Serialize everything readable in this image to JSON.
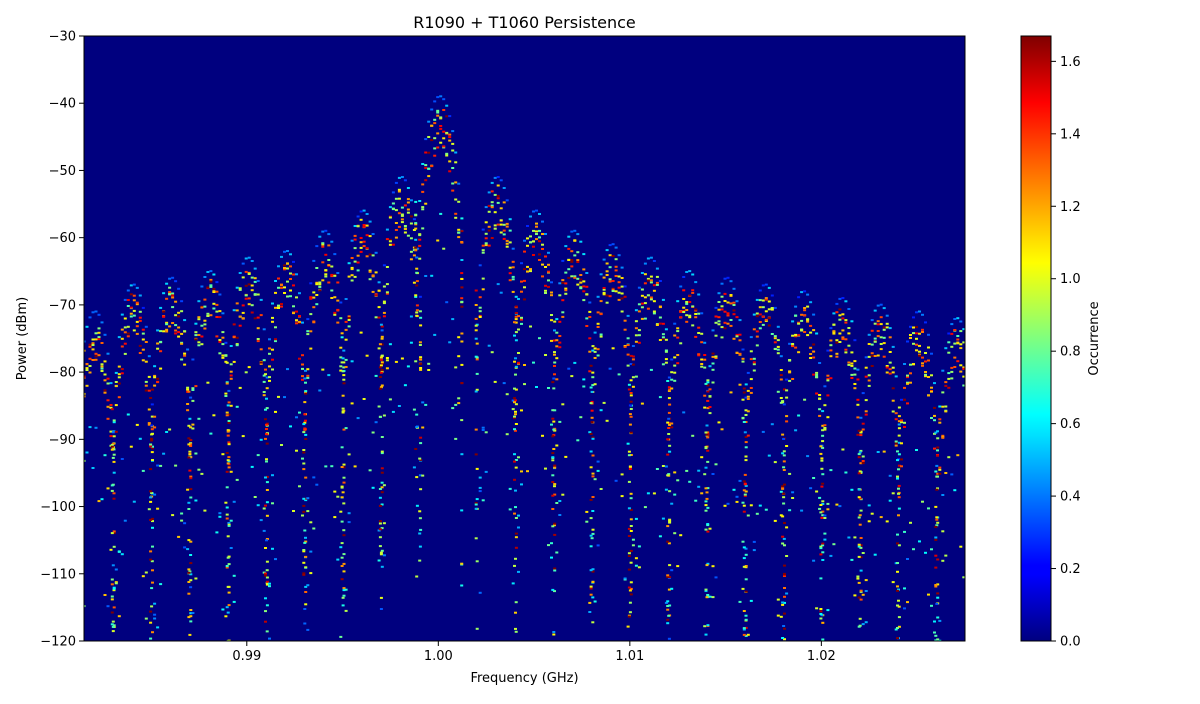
{
  "chart_data": {
    "type": "heatmap",
    "title": "R1090 + T1060 Persistence",
    "xlabel": "Frequency (GHz)",
    "ylabel": "Power (dBm)",
    "colorbar_label": "Occurrence",
    "xlim": [
      0.9815,
      1.0275
    ],
    "ylim": [
      -120,
      -30
    ],
    "x_ticks": [
      0.99,
      1.0,
      1.01,
      1.02
    ],
    "x_tick_labels": [
      "0.99",
      "1.00",
      "1.01",
      "1.02"
    ],
    "y_ticks": [
      -30,
      -40,
      -50,
      -60,
      -70,
      -80,
      -90,
      -100,
      -110,
      -120
    ],
    "y_tick_labels": [
      "−30",
      "−40",
      "−50",
      "−60",
      "−70",
      "−80",
      "−90",
      "−100",
      "−110",
      "−120"
    ],
    "colorbar_range": [
      0.0,
      1.67
    ],
    "colorbar_ticks": [
      0.0,
      0.2,
      0.4,
      0.6,
      0.8,
      1.0,
      1.2,
      1.4,
      1.6
    ],
    "colorbar_tick_labels": [
      "0.0",
      "0.2",
      "0.4",
      "0.6",
      "0.8",
      "1.0",
      "1.2",
      "1.4",
      "1.6"
    ],
    "colormap": "jet",
    "grid": false,
    "lobes": [
      {
        "center_ghz": 0.982,
        "peak_dbm": -72
      },
      {
        "center_ghz": 0.984,
        "peak_dbm": -68
      },
      {
        "center_ghz": 0.986,
        "peak_dbm": -67
      },
      {
        "center_ghz": 0.988,
        "peak_dbm": -66
      },
      {
        "center_ghz": 0.99,
        "peak_dbm": -64
      },
      {
        "center_ghz": 0.992,
        "peak_dbm": -63
      },
      {
        "center_ghz": 0.994,
        "peak_dbm": -60
      },
      {
        "center_ghz": 0.996,
        "peak_dbm": -57
      },
      {
        "center_ghz": 0.998,
        "peak_dbm": -52
      },
      {
        "center_ghz": 1.0,
        "peak_dbm": -40
      },
      {
        "center_ghz": 1.003,
        "peak_dbm": -52
      },
      {
        "center_ghz": 1.005,
        "peak_dbm": -57
      },
      {
        "center_ghz": 1.007,
        "peak_dbm": -60
      },
      {
        "center_ghz": 1.009,
        "peak_dbm": -62
      },
      {
        "center_ghz": 1.011,
        "peak_dbm": -64
      },
      {
        "center_ghz": 1.013,
        "peak_dbm": -66
      },
      {
        "center_ghz": 1.015,
        "peak_dbm": -67
      },
      {
        "center_ghz": 1.017,
        "peak_dbm": -68
      },
      {
        "center_ghz": 1.019,
        "peak_dbm": -69
      },
      {
        "center_ghz": 1.021,
        "peak_dbm": -70
      },
      {
        "center_ghz": 1.023,
        "peak_dbm": -71
      },
      {
        "center_ghz": 1.025,
        "peak_dbm": -72
      },
      {
        "center_ghz": 1.027,
        "peak_dbm": -73
      }
    ]
  }
}
